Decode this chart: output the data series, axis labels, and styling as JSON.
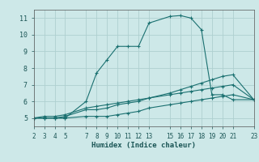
{
  "title": "",
  "xlabel": "Humidex (Indice chaleur)",
  "ylabel": "",
  "background_color": "#cde8e8",
  "grid_color": "#aed0d0",
  "line_color": "#1a7070",
  "xlim": [
    2,
    23
  ],
  "ylim": [
    4.5,
    11.5
  ],
  "xticks": [
    2,
    3,
    4,
    5,
    7,
    8,
    9,
    10,
    11,
    12,
    13,
    15,
    16,
    17,
    18,
    19,
    20,
    21,
    23
  ],
  "yticks": [
    5,
    6,
    7,
    8,
    9,
    10,
    11
  ],
  "series": [
    {
      "x": [
        2,
        3,
        4,
        5,
        7,
        8,
        9,
        10,
        11,
        12,
        13,
        15,
        16,
        17,
        18,
        19,
        20,
        21,
        23
      ],
      "y": [
        5.0,
        5.0,
        5.0,
        5.0,
        6.0,
        7.7,
        8.5,
        9.3,
        9.3,
        9.3,
        10.7,
        11.1,
        11.15,
        11.0,
        10.3,
        6.4,
        6.4,
        6.1,
        6.1
      ]
    },
    {
      "x": [
        2,
        3,
        4,
        5,
        7,
        8,
        9,
        10,
        11,
        12,
        13,
        15,
        16,
        17,
        18,
        19,
        20,
        21,
        23
      ],
      "y": [
        5.0,
        5.0,
        5.0,
        5.1,
        5.5,
        5.5,
        5.6,
        5.8,
        5.9,
        6.0,
        6.2,
        6.5,
        6.7,
        6.9,
        7.1,
        7.3,
        7.5,
        7.6,
        6.1
      ]
    },
    {
      "x": [
        2,
        3,
        4,
        5,
        7,
        8,
        9,
        10,
        11,
        12,
        13,
        15,
        16,
        17,
        18,
        19,
        20,
        21,
        23
      ],
      "y": [
        5.0,
        5.1,
        5.1,
        5.2,
        5.6,
        5.7,
        5.8,
        5.9,
        6.0,
        6.1,
        6.2,
        6.4,
        6.5,
        6.6,
        6.7,
        6.8,
        6.9,
        7.0,
        6.1
      ]
    },
    {
      "x": [
        2,
        3,
        4,
        5,
        7,
        8,
        9,
        10,
        11,
        12,
        13,
        15,
        16,
        17,
        18,
        19,
        20,
        21,
        23
      ],
      "y": [
        5.0,
        5.0,
        5.0,
        5.0,
        5.1,
        5.1,
        5.1,
        5.2,
        5.3,
        5.4,
        5.6,
        5.8,
        5.9,
        6.0,
        6.1,
        6.2,
        6.3,
        6.4,
        6.1
      ]
    }
  ]
}
